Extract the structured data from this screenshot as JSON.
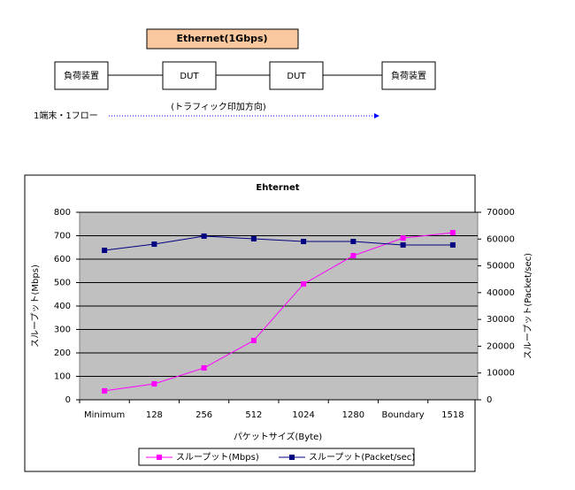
{
  "diagram": {
    "header": "Ethernet(1Gbps)",
    "nodes": [
      {
        "label": "負荷装置"
      },
      {
        "label": "DUT"
      },
      {
        "label": "DUT"
      },
      {
        "label": "負荷装置"
      }
    ],
    "direction_label": "(トラフィック印加方向)",
    "flow_label": "1端末・1フロー"
  },
  "chart_data": {
    "type": "line",
    "title": "Ehternet",
    "x_label": "パケットサイズ(Byte)",
    "y_label": "スループット(Mbps)",
    "y2_label": "スループット(Packet/sec)",
    "categories": [
      "Minimum",
      "128",
      "256",
      "512",
      "1024",
      "1280",
      "Boundary",
      "1518"
    ],
    "series": [
      {
        "name": "スループット(Mbps)",
        "color": "#ff00ff",
        "values": [
          38,
          68,
          136,
          253,
          494,
          615,
          690,
          713
        ]
      },
      {
        "name": "スループット(Packet/sec)",
        "color": "#000080",
        "axis": "y2",
        "values": [
          55800,
          58100,
          61100,
          60100,
          59100,
          59100,
          57800,
          57800
        ]
      }
    ],
    "ylim": [
      0,
      800
    ],
    "yticks": [
      0,
      100,
      200,
      300,
      400,
      500,
      600,
      700,
      800
    ],
    "y2lim": [
      0,
      70000
    ],
    "y2ticks": [
      0,
      10000,
      20000,
      30000,
      40000,
      50000,
      60000,
      70000
    ],
    "grid": true,
    "legend": "bottom"
  }
}
